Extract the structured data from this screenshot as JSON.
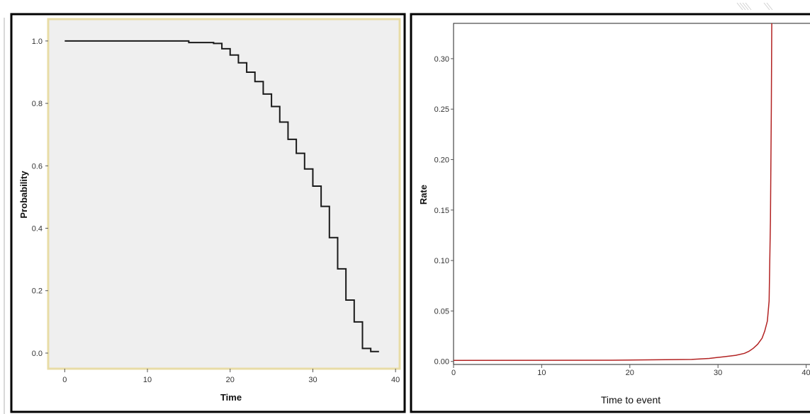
{
  "colors": {
    "left_plot_bg": "#efefef",
    "left_plot_border": "#e8dca6",
    "left_line": "#1a1a1a",
    "right_line": "#b22222",
    "frame": "#000000"
  },
  "chart_data": [
    {
      "type": "line",
      "step": true,
      "xlabel": "Time",
      "ylabel": "Probability",
      "xlim": [
        -2,
        40.5
      ],
      "ylim": [
        -0.05,
        1.07
      ],
      "xticks": [
        0,
        10,
        20,
        30,
        40
      ],
      "yticks": [
        0.0,
        0.2,
        0.4,
        0.6,
        0.8,
        1.0
      ],
      "ytick_labels": [
        "0.0",
        "0.2",
        "0.4",
        "0.6",
        "0.8",
        "1.0"
      ],
      "grid": false,
      "series": [
        {
          "x": [
            0,
            10,
            15,
            18,
            19,
            20,
            21,
            22,
            23,
            24,
            25,
            26,
            27,
            28,
            29,
            30,
            31,
            32,
            33,
            34,
            35,
            36,
            37,
            38
          ],
          "y": [
            1.0,
            1.0,
            0.995,
            0.992,
            0.975,
            0.955,
            0.93,
            0.9,
            0.87,
            0.83,
            0.79,
            0.74,
            0.685,
            0.64,
            0.59,
            0.535,
            0.47,
            0.37,
            0.27,
            0.17,
            0.1,
            0.015,
            0.005,
            0.005
          ]
        }
      ]
    },
    {
      "type": "line",
      "xlabel": "Time to event",
      "ylabel": "Rate",
      "xlim": [
        0,
        41
      ],
      "ylim": [
        -0.003,
        0.335
      ],
      "xticks": [
        0,
        10,
        20,
        30,
        40
      ],
      "yticks": [
        0.0,
        0.05,
        0.1,
        0.15,
        0.2,
        0.25,
        0.3
      ],
      "ytick_labels": [
        "0.00",
        "0.05",
        "0.10",
        "0.15",
        "0.20",
        "0.25",
        "0.30"
      ],
      "grid": false,
      "series": [
        {
          "x": [
            0,
            18,
            27,
            29,
            30,
            31,
            32,
            33,
            33.5,
            34,
            34.5,
            35,
            35.3,
            35.6,
            35.8,
            35.95,
            36.05,
            36.1
          ],
          "y": [
            0.001,
            0.0012,
            0.002,
            0.003,
            0.004,
            0.005,
            0.006,
            0.008,
            0.01,
            0.013,
            0.017,
            0.023,
            0.03,
            0.04,
            0.06,
            0.14,
            0.25,
            0.335
          ]
        }
      ]
    }
  ]
}
